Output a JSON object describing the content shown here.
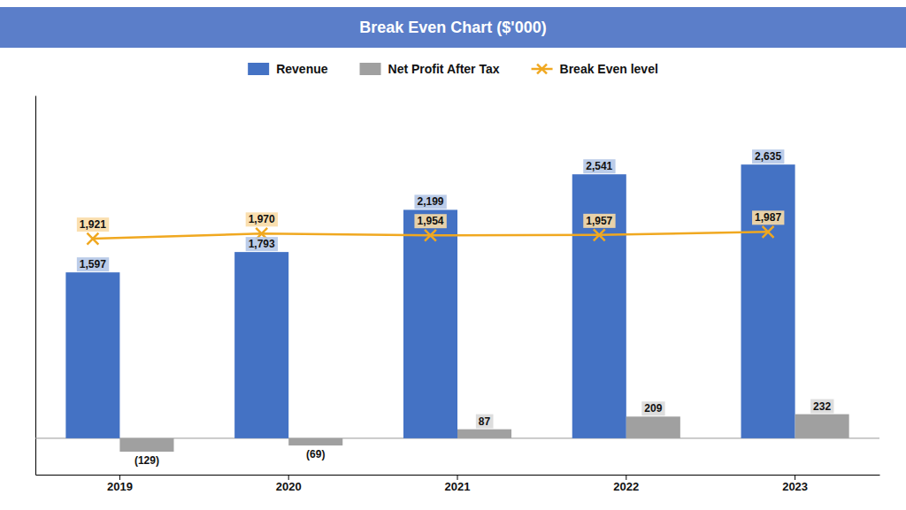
{
  "chart_data": {
    "type": "bar",
    "title": "Break Even Chart ($'000)",
    "categories": [
      "2019",
      "2020",
      "2021",
      "2022",
      "2023"
    ],
    "series": [
      {
        "name": "Revenue",
        "type": "bar",
        "color": "#4472C4",
        "values": [
          1597,
          1793,
          2199,
          2541,
          2635
        ],
        "value_labels": [
          "1,597",
          "1,793",
          "2,199",
          "2,541",
          "2,635"
        ]
      },
      {
        "name": "Net Profit After Tax",
        "type": "bar",
        "color": "#A0A0A0",
        "values": [
          -129,
          -69,
          87,
          209,
          232
        ],
        "value_labels": [
          "(129)",
          "(69)",
          "87",
          "209",
          "232"
        ]
      },
      {
        "name": "Break Even level",
        "type": "line",
        "color": "#F0A820",
        "marker": "x",
        "values": [
          1921,
          1970,
          1954,
          1957,
          1987
        ],
        "value_labels": [
          "1,921",
          "1,970",
          "1,954",
          "1,957",
          "1,987"
        ]
      }
    ],
    "ylim": [
      -350,
      3300
    ],
    "data_labels": true,
    "tick_labels": "x",
    "legend": "top",
    "grid": false
  }
}
